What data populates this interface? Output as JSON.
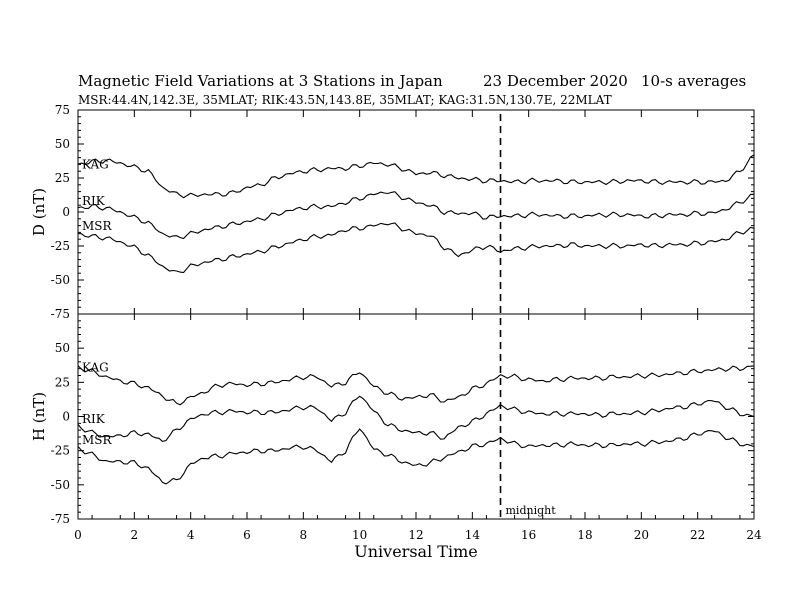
{
  "header": {
    "title": "Magnetic Field Variations at 3 Stations in Japan",
    "date": "23 December 2020",
    "averaging": "10-s averages",
    "stations": "MSR:44.4N,142.3E, 35MLAT;  RIK:43.5N,143.8E, 35MLAT;  KAG:31.5N,130.7E, 22MLAT"
  },
  "chart_data": [
    {
      "type": "line",
      "panel": "D",
      "ylabel": "D (nT)",
      "ylim": [
        -75,
        75
      ],
      "yticks": [
        -75,
        -50,
        -25,
        0,
        25,
        50,
        75
      ],
      "xlim": [
        0,
        24
      ],
      "xlabel": "Universal Time",
      "series": [
        {
          "name": "KAG",
          "x": [
            0,
            0.5,
            1,
            1.5,
            2,
            2.5,
            3,
            3.5,
            4,
            4.5,
            5,
            5.5,
            6,
            6.5,
            7,
            7.5,
            8,
            8.5,
            9,
            9.5,
            10,
            10.5,
            11,
            11.5,
            12,
            12.5,
            13,
            13.5,
            14,
            14.5,
            15,
            15.5,
            16,
            16.5,
            17,
            17.5,
            18,
            18.5,
            19,
            19.5,
            20,
            20.5,
            21,
            21.5,
            22,
            22.5,
            23,
            23.5,
            24
          ],
          "values": [
            35,
            37,
            38,
            36,
            33,
            30,
            18,
            13,
            12,
            13,
            13,
            14,
            18,
            20,
            25,
            28,
            30,
            31,
            32,
            32,
            34,
            36,
            35,
            32,
            28,
            29,
            27,
            25,
            24,
            23,
            23,
            22,
            23,
            23,
            23,
            22,
            22,
            22,
            22,
            23,
            23,
            22,
            22,
            22,
            22,
            22,
            23,
            30,
            42
          ]
        },
        {
          "name": "RIK",
          "x": [
            0,
            0.5,
            1,
            1.5,
            2,
            2.5,
            3,
            3.5,
            4,
            4.5,
            5,
            5.5,
            6,
            6.5,
            7,
            7.5,
            8,
            8.5,
            9,
            9.5,
            10,
            10.5,
            11,
            11.5,
            12,
            12.5,
            13,
            13.5,
            14,
            14.5,
            15,
            15.5,
            16,
            16.5,
            17,
            17.5,
            18,
            18.5,
            19,
            19.5,
            20,
            20.5,
            21,
            21.5,
            22,
            22.5,
            23,
            23.5,
            24
          ],
          "values": [
            3,
            4,
            3,
            0,
            -4,
            -8,
            -16,
            -19,
            -16,
            -13,
            -11,
            -9,
            -7,
            -5,
            -2,
            1,
            3,
            4,
            4,
            7,
            10,
            13,
            15,
            11,
            7,
            5,
            0,
            -1,
            -1,
            -4,
            -3,
            -3,
            -2,
            -2,
            -3,
            -3,
            -3,
            -2,
            -2,
            -2,
            -3,
            -3,
            -2,
            -2,
            -1,
            -1,
            2,
            7,
            13
          ]
        },
        {
          "name": "MSR",
          "x": [
            0,
            0.5,
            1,
            1.5,
            2,
            2.5,
            3,
            3.5,
            4,
            4.5,
            5,
            5.5,
            6,
            6.5,
            7,
            7.5,
            8,
            8.5,
            9,
            9.5,
            10,
            10.5,
            11,
            11.5,
            12,
            12.5,
            13,
            13.5,
            14,
            14.5,
            15,
            15.5,
            16,
            16.5,
            17,
            17.5,
            18,
            18.5,
            19,
            19.5,
            20,
            20.5,
            21,
            21.5,
            22,
            22.5,
            23,
            23.5,
            24
          ],
          "values": [
            -16,
            -18,
            -19,
            -22,
            -26,
            -32,
            -40,
            -45,
            -40,
            -37,
            -35,
            -33,
            -31,
            -29,
            -26,
            -23,
            -20,
            -18,
            -17,
            -13,
            -12,
            -10,
            -8,
            -12,
            -16,
            -17,
            -26,
            -32,
            -28,
            -25,
            -29,
            -27,
            -26,
            -25,
            -25,
            -24,
            -25,
            -25,
            -25,
            -25,
            -24,
            -25,
            -24,
            -24,
            -23,
            -22,
            -20,
            -15,
            -12
          ]
        }
      ]
    },
    {
      "type": "line",
      "panel": "H",
      "ylabel": "H (nT)",
      "ylim": [
        -75,
        75
      ],
      "yticks": [
        -75,
        -50,
        -25,
        0,
        25,
        50,
        75
      ],
      "xlim": [
        0,
        24
      ],
      "xticks": [
        0,
        2,
        4,
        6,
        8,
        10,
        12,
        14,
        16,
        18,
        20,
        22,
        24
      ],
      "xlabel": "Universal Time",
      "series": [
        {
          "name": "KAG",
          "x": [
            0,
            0.5,
            1,
            1.5,
            2,
            2.5,
            3,
            3.5,
            4,
            4.5,
            5,
            5.5,
            6,
            6.5,
            7,
            7.5,
            8,
            8.5,
            9,
            9.5,
            10,
            10.5,
            11,
            11.5,
            12,
            12.5,
            13,
            13.5,
            14,
            14.5,
            15,
            15.5,
            16,
            16.5,
            17,
            17.5,
            18,
            18.5,
            19,
            19.5,
            20,
            20.5,
            21,
            21.5,
            22,
            22.5,
            23,
            23.5,
            24
          ],
          "values": [
            36,
            33,
            29,
            26,
            24,
            21,
            15,
            9,
            14,
            18,
            23,
            24,
            23,
            24,
            25,
            27,
            29,
            29,
            22,
            25,
            33,
            22,
            17,
            13,
            14,
            16,
            11,
            14,
            20,
            24,
            30,
            29,
            27,
            26,
            27,
            28,
            28,
            28,
            29,
            29,
            30,
            30,
            31,
            32,
            33,
            34,
            35,
            35,
            37
          ]
        },
        {
          "name": "RIK",
          "x": [
            0,
            0.5,
            1,
            1.5,
            2,
            2.5,
            3,
            3.5,
            4,
            4.5,
            5,
            5.5,
            6,
            6.5,
            7,
            7.5,
            8,
            8.5,
            9,
            9.5,
            10,
            10.5,
            11,
            11.5,
            12,
            12.5,
            13,
            13.5,
            14,
            14.5,
            15,
            15.5,
            16,
            16.5,
            17,
            17.5,
            18,
            18.5,
            19,
            19.5,
            20,
            20.5,
            21,
            21.5,
            22,
            22.5,
            23,
            23.5,
            24
          ],
          "values": [
            -7,
            -12,
            -15,
            -14,
            -12,
            -13,
            -18,
            -10,
            -2,
            2,
            3,
            4,
            3,
            3,
            3,
            5,
            7,
            6,
            -3,
            3,
            16,
            4,
            -6,
            -10,
            -12,
            -12,
            -16,
            -8,
            -4,
            2,
            8,
            5,
            3,
            2,
            2,
            2,
            2,
            1,
            2,
            2,
            3,
            4,
            6,
            7,
            9,
            12,
            7,
            2,
            0
          ]
        },
        {
          "name": "MSR",
          "x": [
            0,
            0.5,
            1,
            1.5,
            2,
            2.5,
            3,
            3.5,
            4,
            4.5,
            5,
            5.5,
            6,
            6.5,
            7,
            7.5,
            8,
            8.5,
            9,
            9.5,
            10,
            10.5,
            11,
            11.5,
            12,
            12.5,
            13,
            13.5,
            14,
            14.5,
            15,
            15.5,
            16,
            16.5,
            17,
            17.5,
            18,
            18.5,
            19,
            19.5,
            20,
            20.5,
            21,
            21.5,
            22,
            22.5,
            23,
            23.5,
            24
          ],
          "values": [
            -23,
            -28,
            -33,
            -33,
            -34,
            -38,
            -48,
            -47,
            -35,
            -30,
            -29,
            -27,
            -26,
            -25,
            -25,
            -23,
            -22,
            -25,
            -33,
            -25,
            -8,
            -24,
            -28,
            -33,
            -36,
            -34,
            -30,
            -26,
            -22,
            -20,
            -16,
            -20,
            -22,
            -21,
            -21,
            -20,
            -21,
            -21,
            -21,
            -20,
            -20,
            -19,
            -18,
            -16,
            -13,
            -10,
            -15,
            -20,
            -22
          ]
        }
      ]
    }
  ],
  "annotations": {
    "midnight_label": "midnight",
    "midnight_ut": 15
  }
}
